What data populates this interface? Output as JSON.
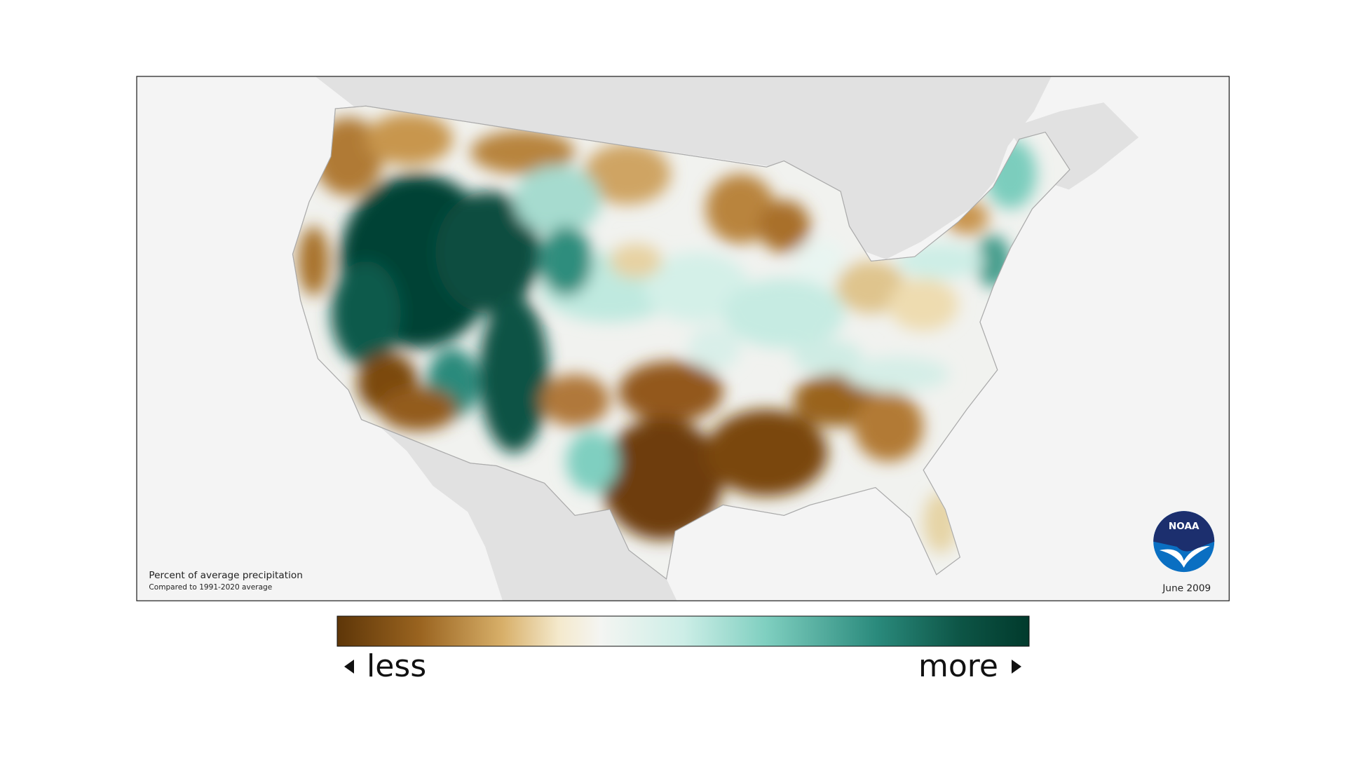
{
  "map": {
    "legend_title": "Percent of average precipitation",
    "legend_subtitle": "Compared to 1991-2020 average",
    "date": "June 2009",
    "scale": {
      "less": "less",
      "more": "more"
    },
    "logo": "NOAA"
  }
}
